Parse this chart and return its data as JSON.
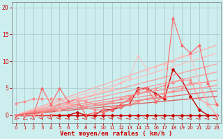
{
  "background_color": "#cceeee",
  "grid_color": "#aacccc",
  "xlabel": "Vent moyen/en rafales ( km/h )",
  "xlabel_color": "#cc0000",
  "tick_color": "#cc0000",
  "xlim": [
    -0.5,
    23.5
  ],
  "ylim": [
    -1.5,
    21
  ],
  "yticks": [
    0,
    5,
    10,
    15,
    20
  ],
  "xticks": [
    0,
    1,
    2,
    3,
    4,
    5,
    6,
    7,
    8,
    9,
    10,
    11,
    12,
    13,
    14,
    15,
    16,
    17,
    18,
    19,
    20,
    21,
    22,
    23
  ],
  "lines": [
    {
      "x": [
        0,
        1,
        2,
        3,
        4,
        5,
        6,
        7,
        8,
        9,
        10,
        11,
        12,
        13,
        14,
        15,
        16,
        17,
        18,
        19,
        20,
        21,
        22,
        23
      ],
      "y": [
        0,
        0,
        0,
        0,
        0,
        0,
        0,
        0,
        0,
        0,
        0,
        0,
        0,
        0,
        0,
        0,
        0,
        0,
        0,
        0,
        0,
        0,
        0,
        0
      ],
      "color": "#cc0000",
      "marker": "D",
      "markersize": 2,
      "linewidth": 1.0,
      "alpha": 1.0,
      "linestyle": "-"
    },
    {
      "x": [
        0,
        1,
        2,
        3,
        4,
        5,
        6,
        7,
        8,
        9,
        10,
        11,
        12,
        13,
        14,
        15,
        16,
        17,
        18,
        19,
        20,
        21,
        22,
        23
      ],
      "y": [
        0,
        0,
        0,
        0,
        0,
        0,
        0,
        0.5,
        0,
        0,
        1,
        1,
        1.5,
        2,
        5,
        5,
        4,
        3,
        8.5,
        6.5,
        3.5,
        1,
        0,
        0
      ],
      "color": "#cc0000",
      "marker": "D",
      "markersize": 2,
      "linewidth": 1.0,
      "alpha": 1.0,
      "linestyle": "-"
    },
    {
      "x": [
        0,
        23
      ],
      "y": [
        0,
        13
      ],
      "color": "#ffaaaa",
      "marker": null,
      "markersize": 0,
      "linewidth": 1.0,
      "alpha": 0.9,
      "linestyle": "-"
    },
    {
      "x": [
        0,
        23
      ],
      "y": [
        0,
        11.5
      ],
      "color": "#ffbbbb",
      "marker": null,
      "markersize": 0,
      "linewidth": 1.0,
      "alpha": 0.9,
      "linestyle": "-"
    },
    {
      "x": [
        0,
        23
      ],
      "y": [
        0,
        9.5
      ],
      "color": "#ff9999",
      "marker": null,
      "markersize": 0,
      "linewidth": 1.0,
      "alpha": 0.9,
      "linestyle": "-"
    },
    {
      "x": [
        0,
        23
      ],
      "y": [
        0,
        8.0
      ],
      "color": "#ff9999",
      "marker": null,
      "markersize": 0,
      "linewidth": 1.0,
      "alpha": 0.9,
      "linestyle": "-"
    },
    {
      "x": [
        0,
        23
      ],
      "y": [
        0,
        6.5
      ],
      "color": "#ff8888",
      "marker": null,
      "markersize": 0,
      "linewidth": 1.0,
      "alpha": 0.9,
      "linestyle": "-"
    },
    {
      "x": [
        0,
        23
      ],
      "y": [
        0,
        5.5
      ],
      "color": "#ff8888",
      "marker": null,
      "markersize": 0,
      "linewidth": 1.0,
      "alpha": 0.9,
      "linestyle": "-"
    },
    {
      "x": [
        0,
        23
      ],
      "y": [
        0,
        4.5
      ],
      "color": "#ee6666",
      "marker": null,
      "markersize": 0,
      "linewidth": 1.0,
      "alpha": 0.9,
      "linestyle": "-"
    },
    {
      "x": [
        0,
        23
      ],
      "y": [
        0,
        3.5
      ],
      "color": "#dd5555",
      "marker": null,
      "markersize": 0,
      "linewidth": 1.0,
      "alpha": 0.9,
      "linestyle": "-"
    },
    {
      "x": [
        0,
        1,
        2,
        3,
        4,
        5,
        6,
        7,
        8,
        9,
        10,
        11,
        12,
        13,
        14,
        15,
        16,
        17,
        18,
        19,
        20,
        21,
        22,
        23
      ],
      "y": [
        2.2,
        2.5,
        3,
        3,
        3,
        3,
        2,
        2,
        1.5,
        1,
        1,
        1.5,
        1.5,
        2,
        2.5,
        3,
        3.5,
        4,
        4.5,
        5,
        6,
        6,
        2,
        2
      ],
      "color": "#ff8888",
      "marker": "o",
      "markersize": 2,
      "linewidth": 0.8,
      "alpha": 0.85,
      "linestyle": "-"
    },
    {
      "x": [
        0,
        1,
        2,
        3,
        4,
        5,
        6,
        7,
        8,
        9,
        10,
        11,
        12,
        13,
        14,
        15,
        16,
        17,
        18,
        19,
        20,
        21,
        22,
        23
      ],
      "y": [
        0,
        0,
        0,
        0.5,
        1,
        2,
        2.5,
        3,
        2.5,
        2,
        2,
        2.5,
        3,
        3.5,
        4,
        4.5,
        5,
        5.5,
        6,
        6.5,
        6.5,
        3,
        2,
        0
      ],
      "color": "#ff8888",
      "marker": "o",
      "markersize": 2,
      "linewidth": 0.8,
      "alpha": 0.85,
      "linestyle": "-"
    },
    {
      "x": [
        0,
        1,
        2,
        3,
        4,
        5,
        6,
        7,
        8,
        9,
        10,
        11,
        12,
        13,
        14,
        15,
        16,
        17,
        18,
        19,
        20,
        21,
        22,
        23
      ],
      "y": [
        0,
        0,
        0,
        5,
        2,
        5,
        2.5,
        3,
        0,
        0.5,
        0.5,
        1,
        2,
        3,
        4.5,
        5,
        2.5,
        3.5,
        18,
        13,
        11.5,
        13,
        6,
        2
      ],
      "color": "#ff6666",
      "marker": "^",
      "markersize": 2.5,
      "linewidth": 0.9,
      "alpha": 0.9,
      "linestyle": "-"
    },
    {
      "x": [
        0,
        1,
        2,
        3,
        4,
        5,
        6,
        7,
        8,
        9,
        10,
        11,
        12,
        13,
        14,
        15,
        16,
        17,
        18,
        19,
        20,
        21,
        22,
        23
      ],
      "y": [
        0,
        0,
        0,
        0,
        0,
        1,
        2,
        3,
        3.5,
        4,
        4.5,
        5,
        6,
        7,
        11,
        8.5,
        9,
        9.5,
        10,
        11,
        11,
        6,
        2,
        0
      ],
      "color": "#ffbbbb",
      "marker": "^",
      "markersize": 2.5,
      "linewidth": 0.9,
      "alpha": 0.75,
      "linestyle": "-"
    }
  ]
}
